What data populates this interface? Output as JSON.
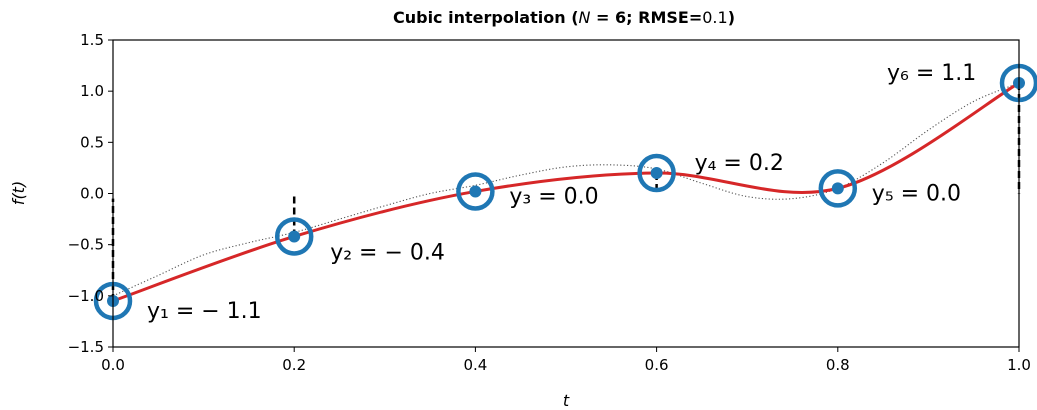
{
  "chart_data": {
    "type": "line",
    "title": {
      "prefix": "Cubic interpolation (",
      "n_symbol": "N",
      "n_value": " = 6; ",
      "rmse_label": "RMSE=",
      "rmse_value": "0.1",
      "suffix": ")"
    },
    "xlabel": "t",
    "ylabel": "f(t)",
    "xlim": [
      0,
      1
    ],
    "ylim": [
      -1.5,
      1.5
    ],
    "xticks": [
      "0.0",
      "0.2",
      "0.4",
      "0.6",
      "0.8",
      "1.0"
    ],
    "yticks": [
      "1.5",
      "1.0",
      "0.5",
      "0.0",
      "−0.5",
      "−1.0",
      "−1.5"
    ],
    "colors": {
      "interp": "#d62728",
      "points": "#1f77b4",
      "truth": "#555555"
    },
    "series": [
      {
        "style": "dotted",
        "x": [
          0,
          0.05,
          0.1,
          0.15,
          0.2,
          0.25,
          0.3,
          0.35,
          0.4,
          0.45,
          0.5,
          0.55,
          0.6,
          0.65,
          0.7,
          0.75,
          0.8,
          0.85,
          0.9,
          0.95,
          1.0
        ],
        "y": [
          -1.0,
          -0.8,
          -0.6,
          -0.48,
          -0.38,
          -0.25,
          -0.12,
          0.0,
          0.08,
          0.18,
          0.26,
          0.28,
          0.24,
          0.1,
          -0.03,
          -0.05,
          0.05,
          0.3,
          0.62,
          0.9,
          1.08
        ]
      },
      {
        "style": "solid",
        "x": [
          0,
          0.2,
          0.4,
          0.6,
          0.8,
          1.0
        ],
        "y": [
          -1.05,
          -0.42,
          0.02,
          0.2,
          0.05,
          1.08
        ]
      }
    ],
    "points": [
      {
        "x": 0.0,
        "y": -1.05,
        "label": "y₁ = − 1.1",
        "truth": -0.05
      },
      {
        "x": 0.2,
        "y": -0.42,
        "label": "y₂ = − 0.4",
        "truth": 0.0
      },
      {
        "x": 0.4,
        "y": 0.02,
        "label": "y₃ = 0.0",
        "truth": 0.0
      },
      {
        "x": 0.6,
        "y": 0.2,
        "label": "y₄ = 0.2",
        "truth": 0.05
      },
      {
        "x": 0.8,
        "y": 0.05,
        "label": "y₅ = 0.0",
        "truth": 0.0
      },
      {
        "x": 1.0,
        "y": 1.08,
        "label": "y₆ = 1.1",
        "truth": 0.0
      }
    ]
  }
}
